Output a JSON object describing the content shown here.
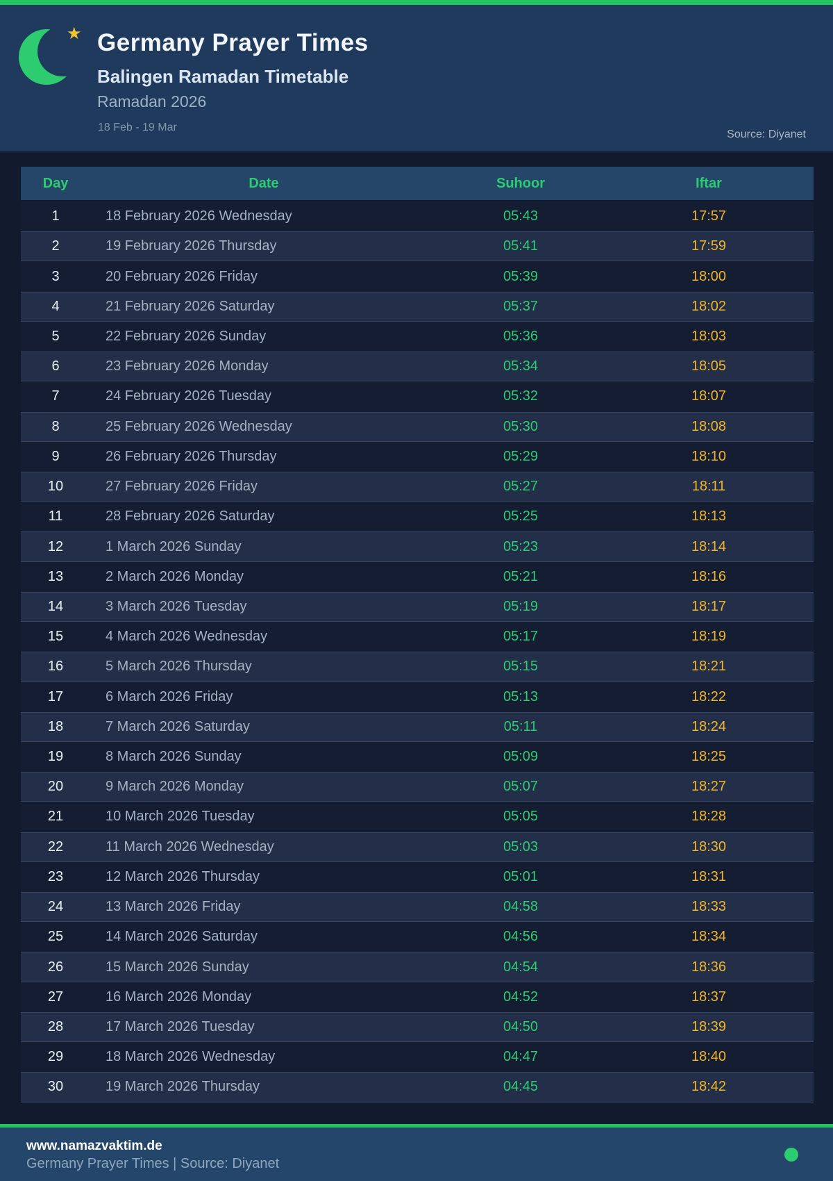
{
  "header": {
    "title": "Germany Prayer Times",
    "subtitle": "Balingen Ramadan Timetable",
    "season": "Ramadan 2026",
    "date_range": "18 Feb - 19 Mar",
    "source": "Source: Diyanet",
    "moon_icon": "crescent-moon",
    "star_icon": "star",
    "star_glyph": "★"
  },
  "table": {
    "columns": [
      "Day",
      "Date",
      "Suhoor",
      "Iftar"
    ],
    "rows": [
      {
        "day": "1",
        "date": "18 February 2026 Wednesday",
        "suhoor": "05:43",
        "iftar": "17:57"
      },
      {
        "day": "2",
        "date": "19 February 2026 Thursday",
        "suhoor": "05:41",
        "iftar": "17:59"
      },
      {
        "day": "3",
        "date": "20 February 2026 Friday",
        "suhoor": "05:39",
        "iftar": "18:00"
      },
      {
        "day": "4",
        "date": "21 February 2026 Saturday",
        "suhoor": "05:37",
        "iftar": "18:02"
      },
      {
        "day": "5",
        "date": "22 February 2026 Sunday",
        "suhoor": "05:36",
        "iftar": "18:03"
      },
      {
        "day": "6",
        "date": "23 February 2026 Monday",
        "suhoor": "05:34",
        "iftar": "18:05"
      },
      {
        "day": "7",
        "date": "24 February 2026 Tuesday",
        "suhoor": "05:32",
        "iftar": "18:07"
      },
      {
        "day": "8",
        "date": "25 February 2026 Wednesday",
        "suhoor": "05:30",
        "iftar": "18:08"
      },
      {
        "day": "9",
        "date": "26 February 2026 Thursday",
        "suhoor": "05:29",
        "iftar": "18:10"
      },
      {
        "day": "10",
        "date": "27 February 2026 Friday",
        "suhoor": "05:27",
        "iftar": "18:11"
      },
      {
        "day": "11",
        "date": "28 February 2026 Saturday",
        "suhoor": "05:25",
        "iftar": "18:13"
      },
      {
        "day": "12",
        "date": "1 March 2026 Sunday",
        "suhoor": "05:23",
        "iftar": "18:14"
      },
      {
        "day": "13",
        "date": "2 March 2026 Monday",
        "suhoor": "05:21",
        "iftar": "18:16"
      },
      {
        "day": "14",
        "date": "3 March 2026 Tuesday",
        "suhoor": "05:19",
        "iftar": "18:17"
      },
      {
        "day": "15",
        "date": "4 March 2026 Wednesday",
        "suhoor": "05:17",
        "iftar": "18:19"
      },
      {
        "day": "16",
        "date": "5 March 2026 Thursday",
        "suhoor": "05:15",
        "iftar": "18:21"
      },
      {
        "day": "17",
        "date": "6 March 2026 Friday",
        "suhoor": "05:13",
        "iftar": "18:22"
      },
      {
        "day": "18",
        "date": "7 March 2026 Saturday",
        "suhoor": "05:11",
        "iftar": "18:24"
      },
      {
        "day": "19",
        "date": "8 March 2026 Sunday",
        "suhoor": "05:09",
        "iftar": "18:25"
      },
      {
        "day": "20",
        "date": "9 March 2026 Monday",
        "suhoor": "05:07",
        "iftar": "18:27"
      },
      {
        "day": "21",
        "date": "10 March 2026 Tuesday",
        "suhoor": "05:05",
        "iftar": "18:28"
      },
      {
        "day": "22",
        "date": "11 March 2026 Wednesday",
        "suhoor": "05:03",
        "iftar": "18:30"
      },
      {
        "day": "23",
        "date": "12 March 2026 Thursday",
        "suhoor": "05:01",
        "iftar": "18:31"
      },
      {
        "day": "24",
        "date": "13 March 2026 Friday",
        "suhoor": "04:58",
        "iftar": "18:33"
      },
      {
        "day": "25",
        "date": "14 March 2026 Saturday",
        "suhoor": "04:56",
        "iftar": "18:34"
      },
      {
        "day": "26",
        "date": "15 March 2026 Sunday",
        "suhoor": "04:54",
        "iftar": "18:36"
      },
      {
        "day": "27",
        "date": "16 March 2026 Monday",
        "suhoor": "04:52",
        "iftar": "18:37"
      },
      {
        "day": "28",
        "date": "17 March 2026 Tuesday",
        "suhoor": "04:50",
        "iftar": "18:39"
      },
      {
        "day": "29",
        "date": "18 March 2026 Wednesday",
        "suhoor": "04:47",
        "iftar": "18:40"
      },
      {
        "day": "30",
        "date": "19 March 2026 Thursday",
        "suhoor": "04:45",
        "iftar": "18:42"
      }
    ]
  },
  "footer": {
    "website": "www.namazvaktim.de",
    "tagline": "Germany Prayer Times | Source: Diyanet",
    "status_dot": "green-dot"
  },
  "colors": {
    "topbar_green": "#22c55e",
    "accent_green": "#2ecc71",
    "iftar_amber": "#f0b429",
    "star_gold": "#f4c430",
    "header_bg": "#1f3a5d",
    "body_bg": "#121b2e",
    "table_header_bg": "#254569",
    "row_odd_bg": "#141d32",
    "row_even_bg": "#232f48",
    "footer_bg": "#24466b"
  }
}
